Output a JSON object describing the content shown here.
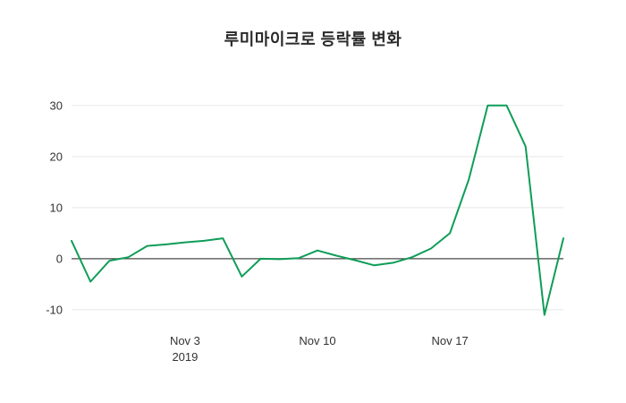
{
  "title": "루미마이크로 등락률 변화",
  "chart_data": {
    "type": "line",
    "title": "루미마이크로 등락률 변화",
    "xlabel": "",
    "ylabel": "",
    "grid": true,
    "zero_line": true,
    "legend": "none",
    "background_color": "#ffffff",
    "grid_color": "#e8e8e8",
    "zero_line_color": "#4a4a4a",
    "ylim": [
      -13,
      34
    ],
    "yticks": [
      -10,
      0,
      10,
      20,
      30
    ],
    "x_ticks": [
      {
        "index": 6,
        "label": "Nov 3",
        "sublabel": "2019"
      },
      {
        "index": 13,
        "label": "Nov 10",
        "sublabel": ""
      },
      {
        "index": 20,
        "label": "Nov 17",
        "sublabel": ""
      }
    ],
    "series": [
      {
        "name": "등락률 (%)",
        "color": "#0f9d58",
        "values": [
          3.5,
          -4.5,
          -0.4,
          0.3,
          2.5,
          2.8,
          3.2,
          3.5,
          4.0,
          -3.5,
          0.0,
          -0.1,
          0.1,
          1.6,
          0.6,
          -0.3,
          -1.3,
          -0.8,
          0.3,
          2.0,
          5.0,
          15.5,
          30.0,
          30.0,
          22.0,
          -11.0,
          4.0
        ]
      }
    ]
  }
}
